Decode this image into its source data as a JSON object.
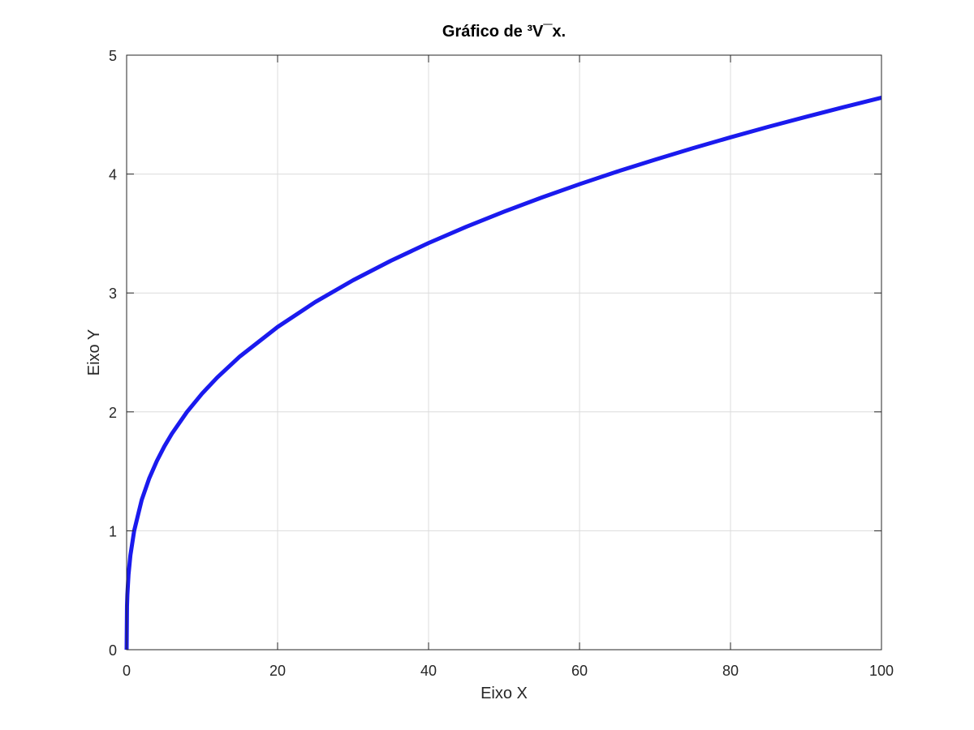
{
  "chart_data": {
    "type": "line",
    "title": "Gráfico de ³V¯x.",
    "xlabel": "Eixo X",
    "ylabel": "Eixo Y",
    "xlim": [
      0,
      100
    ],
    "ylim": [
      0,
      5
    ],
    "xticks": [
      0,
      20,
      40,
      60,
      80,
      100
    ],
    "yticks": [
      0,
      1,
      2,
      3,
      4,
      5
    ],
    "grid": true,
    "series": [
      {
        "color": "#1a1aee",
        "x": [
          0,
          0.05,
          0.1,
          0.25,
          0.5,
          1,
          2,
          3,
          4,
          5,
          6,
          8,
          10,
          12,
          15,
          20,
          25,
          30,
          35,
          40,
          45,
          50,
          55,
          60,
          65,
          70,
          75,
          80,
          85,
          90,
          95,
          100
        ],
        "y": [
          0,
          0.368,
          0.464,
          0.63,
          0.794,
          1,
          1.26,
          1.442,
          1.587,
          1.71,
          1.817,
          2,
          2.154,
          2.289,
          2.466,
          2.714,
          2.924,
          3.107,
          3.271,
          3.42,
          3.557,
          3.684,
          3.803,
          3.915,
          4.021,
          4.121,
          4.217,
          4.309,
          4.397,
          4.481,
          4.563,
          4.642
        ]
      }
    ]
  }
}
